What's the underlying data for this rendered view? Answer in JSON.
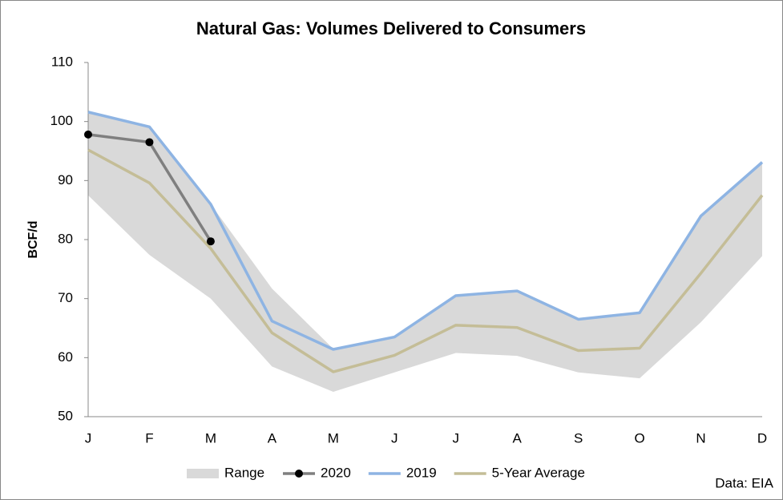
{
  "chart_data": {
    "type": "line",
    "title": "Natural Gas: Volumes Delivered to Consumers",
    "y_label": "BCF/d",
    "annotation": "Data: EIA",
    "categories": [
      "J",
      "F",
      "M",
      "A",
      "M",
      "J",
      "J",
      "A",
      "S",
      "O",
      "N",
      "D"
    ],
    "ylim": [
      50,
      110
    ],
    "yticks": [
      50,
      60,
      70,
      80,
      90,
      100,
      110
    ],
    "grid": false,
    "legend": "bottom",
    "range": {
      "name": "Range",
      "color": "#d9d9d9",
      "low": [
        87.5,
        77.4,
        70,
        58.5,
        54.2,
        57.5,
        60.8,
        60.3,
        57.5,
        56.5,
        66,
        77.2
      ],
      "high": [
        101.6,
        99.1,
        86,
        71.7,
        61.5,
        63.5,
        70.5,
        71.3,
        66.5,
        67.6,
        84,
        93.1
      ]
    },
    "series": [
      {
        "name": "2020",
        "color": "#7f7f7f",
        "marker": "#000000",
        "values": [
          97.8,
          96.5,
          79.7,
          null,
          null,
          null,
          null,
          null,
          null,
          null,
          null,
          null
        ]
      },
      {
        "name": "2019",
        "color": "#8eb4e3",
        "values": [
          101.6,
          99.1,
          86,
          66.2,
          61.4,
          63.5,
          70.5,
          71.3,
          66.5,
          67.6,
          84,
          93.1
        ]
      },
      {
        "name": "5-Year Average",
        "color": "#c4bd97",
        "values": [
          95.2,
          89.6,
          78.5,
          64.2,
          57.6,
          60.4,
          65.5,
          65.1,
          61.2,
          61.6,
          74.3,
          87.5
        ]
      }
    ]
  }
}
